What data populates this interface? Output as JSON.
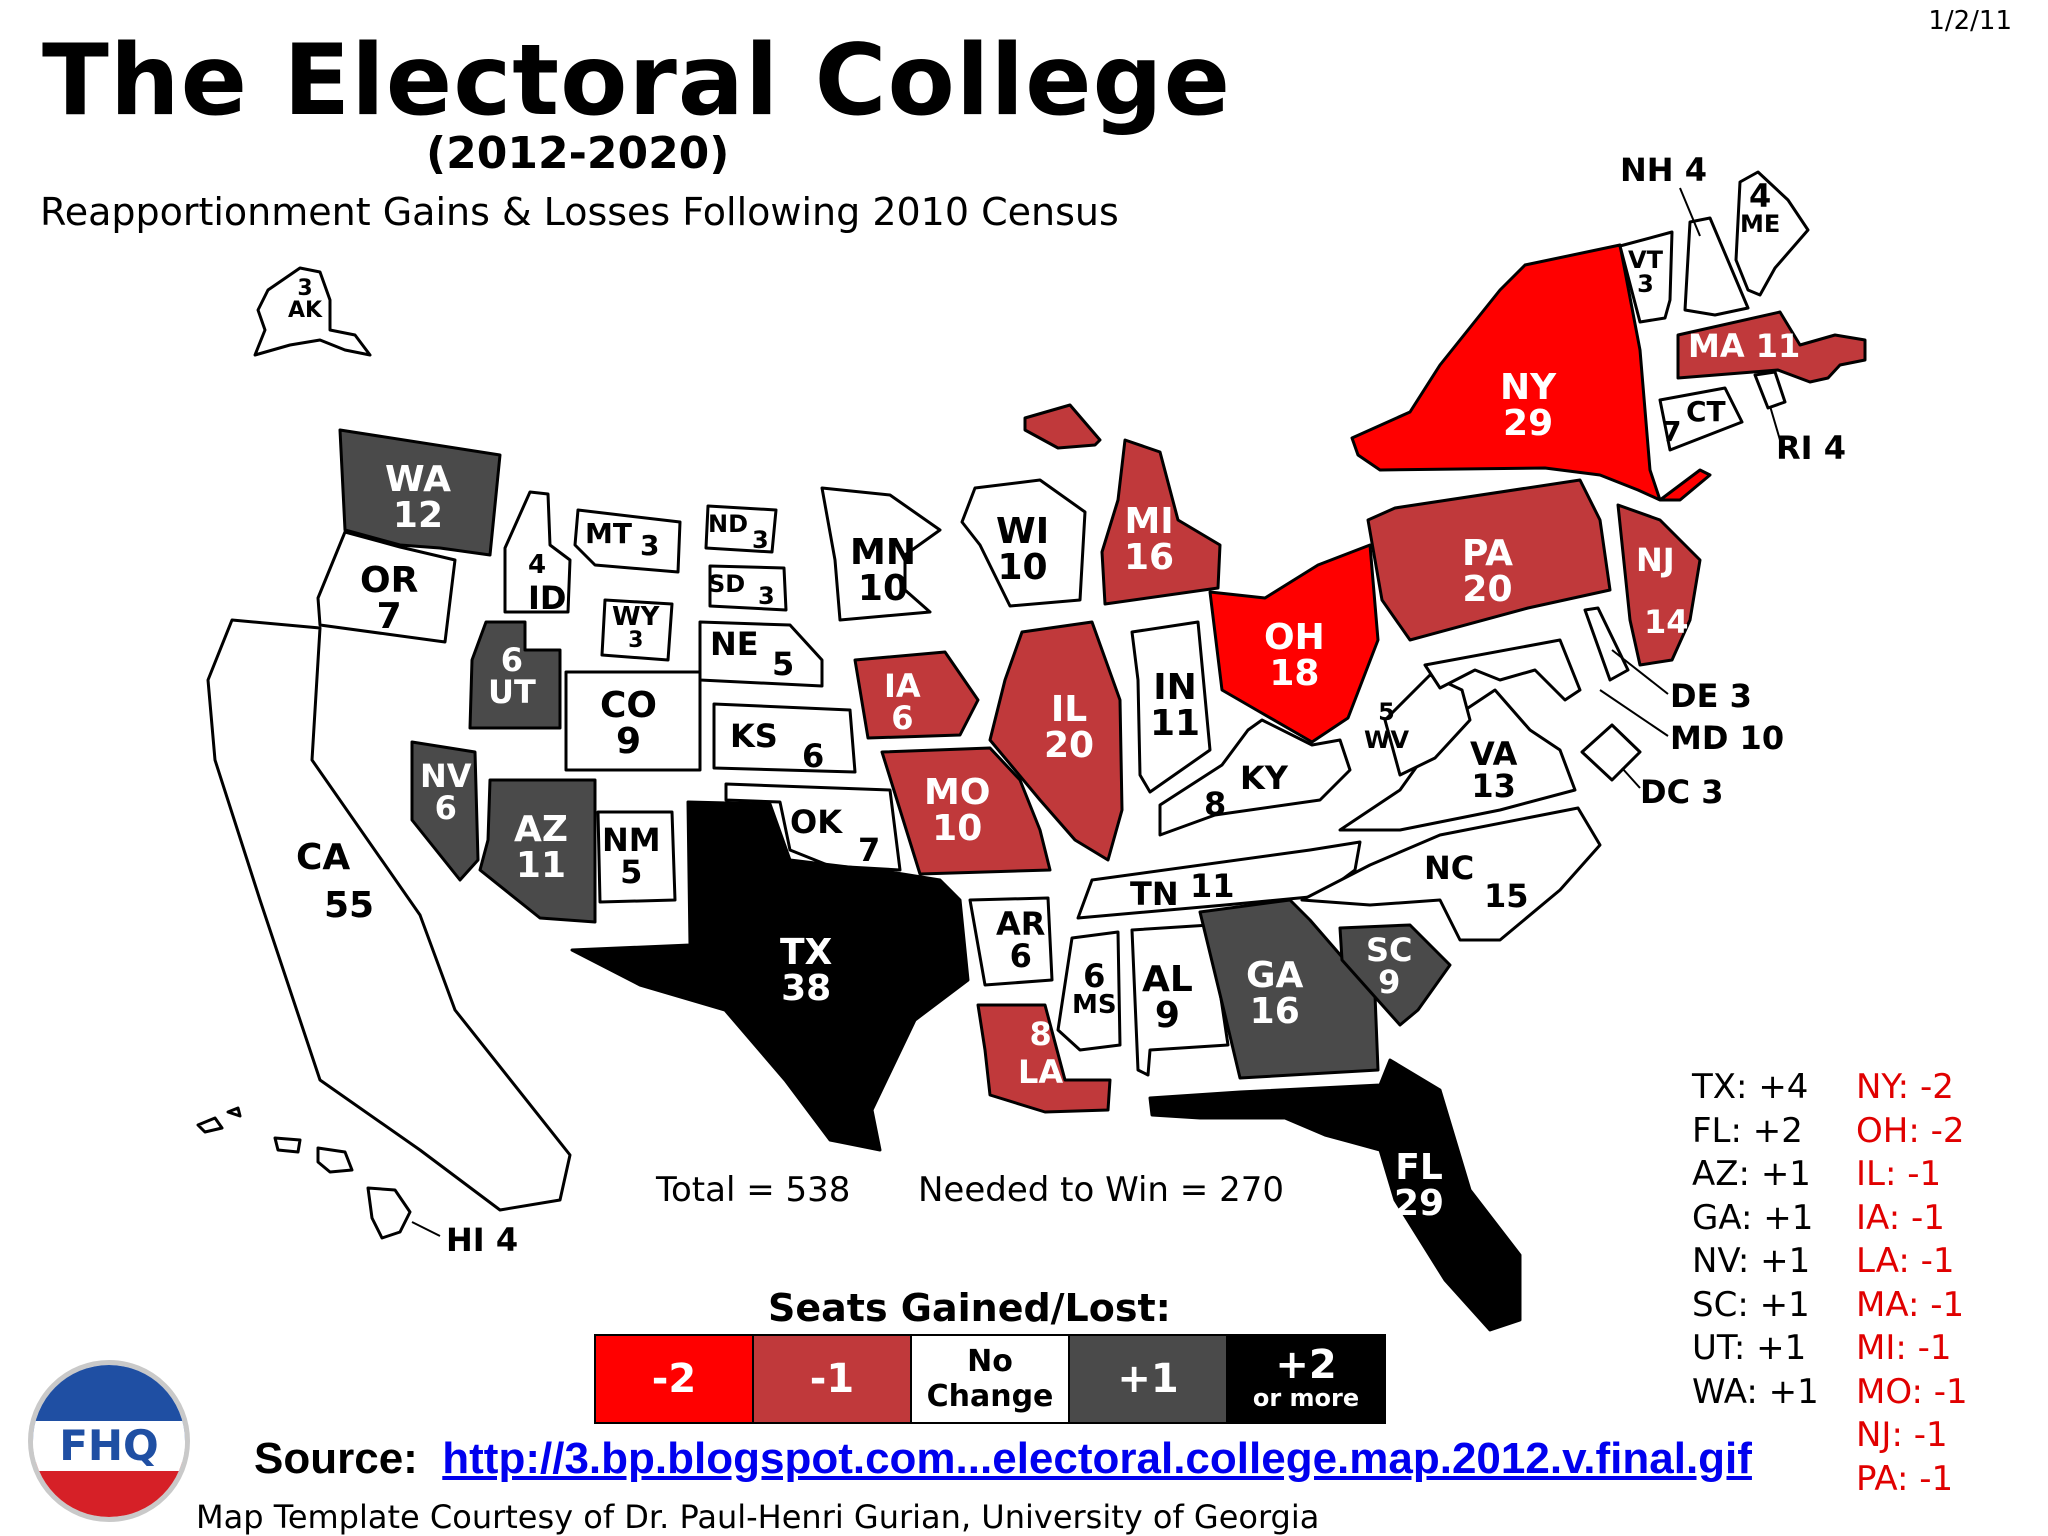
{
  "date": "1/2/11",
  "title": "The Electoral College",
  "years": "(2012-2020)",
  "subtitle": "Reapportionment Gains & Losses Following 2010 Census",
  "colors": {
    "minus2": "#ff0000",
    "minus1": "#c0393b",
    "no_change": "#ffffff",
    "plus1": "#4a4a4a",
    "plus2": "#000000"
  },
  "states": {
    "AK": {
      "name": "AK",
      "votes": "3"
    },
    "HI": {
      "name": "HI 4"
    },
    "WA": {
      "name": "WA",
      "votes": "12"
    },
    "OR": {
      "name": "OR",
      "votes": "7"
    },
    "CA": {
      "name": "CA",
      "votes": "55"
    },
    "ID": {
      "name": "ID",
      "votes": "4"
    },
    "NV": {
      "name": "NV",
      "votes": "6"
    },
    "UT": {
      "name": "UT",
      "votes": "6"
    },
    "AZ": {
      "name": "AZ",
      "votes": "11"
    },
    "MT": {
      "name": "MT",
      "votes": "3"
    },
    "WY": {
      "name": "WY",
      "votes": "3"
    },
    "CO": {
      "name": "CO",
      "votes": "9"
    },
    "NM": {
      "name": "NM",
      "votes": "5"
    },
    "ND": {
      "name": "ND",
      "votes": "3"
    },
    "SD": {
      "name": "SD",
      "votes": "3"
    },
    "NE": {
      "name": "NE",
      "votes": "5"
    },
    "KS": {
      "name": "KS",
      "votes": "6"
    },
    "OK": {
      "name": "OK",
      "votes": "7"
    },
    "TX": {
      "name": "TX",
      "votes": "38"
    },
    "MN": {
      "name": "MN",
      "votes": "10"
    },
    "IA": {
      "name": "IA",
      "votes": "6"
    },
    "MO": {
      "name": "MO",
      "votes": "10"
    },
    "AR": {
      "name": "AR",
      "votes": "6"
    },
    "LA": {
      "name": "LA",
      "votes": "8"
    },
    "WI": {
      "name": "WI",
      "votes": "10"
    },
    "IL": {
      "name": "IL",
      "votes": "20"
    },
    "MI": {
      "name": "MI",
      "votes": "16"
    },
    "IN": {
      "name": "IN",
      "votes": "11"
    },
    "OH": {
      "name": "OH",
      "votes": "18"
    },
    "KY": {
      "name": "KY",
      "votes": "8"
    },
    "TN": {
      "name": "TN",
      "votes": "11"
    },
    "MS": {
      "name": "MS",
      "votes": "6"
    },
    "AL": {
      "name": "AL",
      "votes": "9"
    },
    "GA": {
      "name": "GA",
      "votes": "16"
    },
    "FL": {
      "name": "FL",
      "votes": "29"
    },
    "SC": {
      "name": "SC",
      "votes": "9"
    },
    "NC": {
      "name": "NC",
      "votes": "15"
    },
    "VA": {
      "name": "VA",
      "votes": "13"
    },
    "WV": {
      "name": "WV",
      "votes": "5"
    },
    "PA": {
      "name": "PA",
      "votes": "20"
    },
    "NY": {
      "name": "NY",
      "votes": "29"
    },
    "NJ": {
      "name": "NJ",
      "votes": "14"
    },
    "VT": {
      "name": "VT",
      "votes": "3"
    },
    "NH": {
      "name": "NH 4"
    },
    "ME": {
      "name": "ME",
      "votes": "4"
    },
    "MA": {
      "name": "MA",
      "votes": "11"
    },
    "RI": {
      "name": "RI 4"
    },
    "CT": {
      "name": "CT",
      "votes": "7"
    },
    "DE": {
      "name": "DE 3"
    },
    "MD": {
      "name": "MD 10"
    },
    "DC": {
      "name": "DC 3"
    }
  },
  "totals": {
    "total": "Total = 538",
    "needed": "Needed to Win = 270"
  },
  "legend": {
    "title": "Seats Gained/Lost:",
    "items": [
      {
        "label": "-2",
        "sub": ""
      },
      {
        "label": "-1",
        "sub": ""
      },
      {
        "label": "No",
        "sub": "Change"
      },
      {
        "label": "+1",
        "sub": ""
      },
      {
        "label": "+2",
        "sub": "or more"
      }
    ]
  },
  "gains": [
    "TX: +4",
    "FL: +2",
    "AZ: +1",
    "GA: +1",
    "NV: +1",
    "SC: +1",
    "UT: +1",
    "WA: +1"
  ],
  "losses": [
    "NY: -2",
    "OH: -2",
    "IL: -1",
    "IA: -1",
    "LA: -1",
    "MA: -1",
    "MI: -1",
    "MO: -1",
    "NJ: -1",
    "PA: -1"
  ],
  "source": {
    "label": "Source:",
    "link": "http://3.bp.blogspot.com...electoral.college.map.2012.v.final.gif"
  },
  "credit": "Map Template Courtesy of Dr. Paul-Henri Gurian, University of Georgia",
  "logo": "FHQ"
}
